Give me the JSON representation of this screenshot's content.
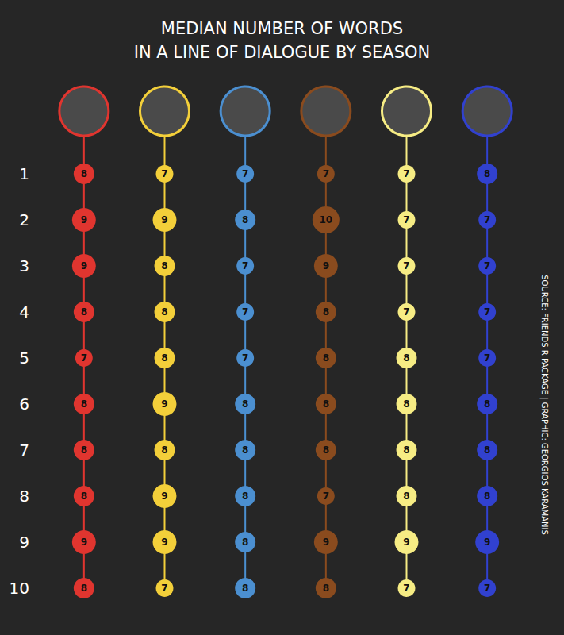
{
  "chart_data": {
    "type": "line",
    "title": "MEDIAN NUMBER OF WORDS\nIN A LINE OF DIALOGUE BY SEASON",
    "categories": [
      "1",
      "2",
      "3",
      "4",
      "5",
      "6",
      "7",
      "8",
      "9",
      "10"
    ],
    "series": [
      {
        "color": "#e0352f",
        "values": [
          8,
          9,
          9,
          8,
          7,
          8,
          8,
          8,
          9,
          8
        ]
      },
      {
        "color": "#f3cf3a",
        "values": [
          7,
          9,
          8,
          8,
          8,
          9,
          8,
          9,
          9,
          7
        ]
      },
      {
        "color": "#4b8fd0",
        "values": [
          7,
          8,
          7,
          7,
          7,
          8,
          8,
          8,
          8,
          8
        ]
      },
      {
        "color": "#8a4b1e",
        "values": [
          7,
          10,
          9,
          8,
          8,
          8,
          8,
          7,
          9,
          8
        ]
      },
      {
        "color": "#f6ec84",
        "values": [
          7,
          7,
          7,
          7,
          8,
          8,
          8,
          8,
          9,
          7
        ]
      },
      {
        "color": "#3141cf",
        "values": [
          8,
          7,
          7,
          7,
          7,
          8,
          8,
          8,
          9,
          7
        ]
      }
    ],
    "data_labels": true,
    "tick_labels": "y",
    "annotations": [
      "SOURCE: FRIENDS R PACKAGE | GRAPHIC: GEORGIOS KARAMANIS"
    ]
  }
}
